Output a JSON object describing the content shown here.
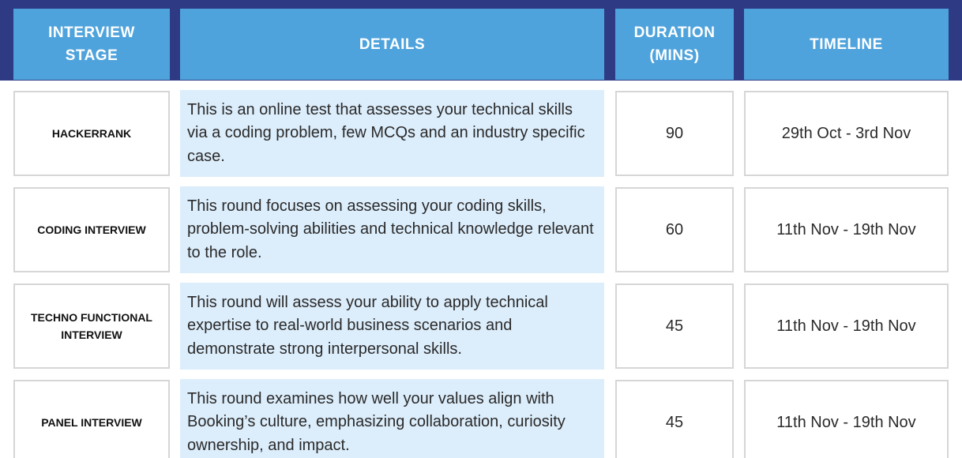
{
  "colors": {
    "header_band": "#2e3b84",
    "header_cell": "#4fa3dc",
    "details_bg": "#dcedfb",
    "cell_border": "#d6d6d6"
  },
  "headers": {
    "stage": "INTERVIEW\nSTAGE",
    "details": "DETAILS",
    "duration": "DURATION\n(MINS)",
    "timeline": "TIMELINE"
  },
  "rows": [
    {
      "stage": "HACKERRANK",
      "details": "This is an online test that assesses your technical skills via a coding problem, few MCQs and an industry specific case.",
      "duration": "90",
      "timeline": "29th Oct - 3rd Nov"
    },
    {
      "stage": "CODING INTERVIEW",
      "details": "This round focuses on assessing your coding skills, problem-solving abilities and technical knowledge relevant to the role.",
      "duration": "60",
      "timeline": "11th Nov - 19th Nov"
    },
    {
      "stage": "TECHNO FUNCTIONAL\nINTERVIEW",
      "details": "This round will assess your ability to apply technical expertise to real-world business scenarios and demonstrate strong interpersonal skills.",
      "duration": "45",
      "timeline": "11th Nov - 19th Nov"
    },
    {
      "stage": "PANEL INTERVIEW",
      "details": "This round examines how well your values align with Booking’s culture, emphasizing collaboration, curiosity ownership, and impact.",
      "duration": "45",
      "timeline": "11th Nov - 19th Nov"
    }
  ]
}
